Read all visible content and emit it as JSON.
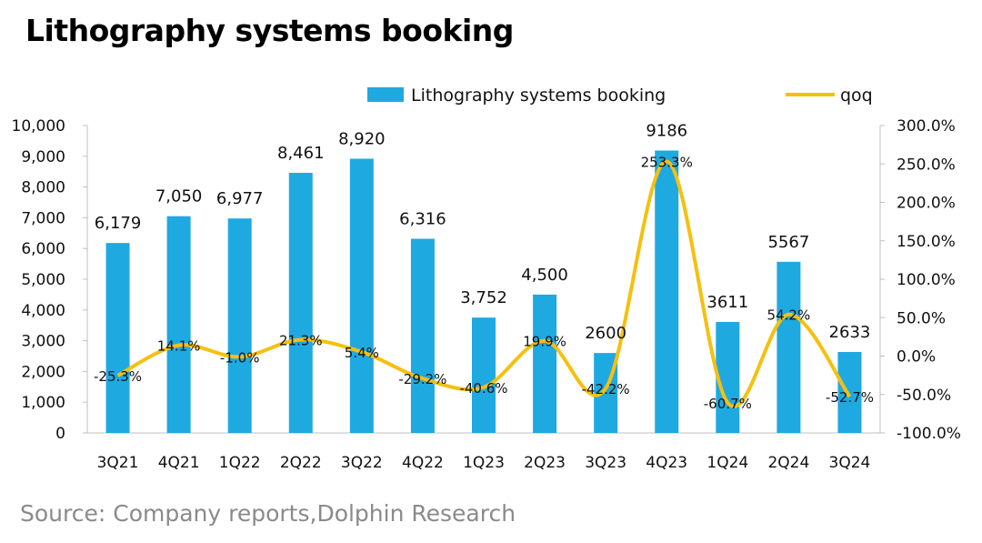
{
  "header": {
    "title": "Lithography systems booking"
  },
  "footer": {
    "source": "Source: Company reports,Dolphin Research"
  },
  "colors": {
    "bars": "#1fa9e1",
    "line": "#f5c010"
  },
  "chart_data": {
    "type": "bar",
    "title": "Lithography systems booking",
    "categories": [
      "3Q21",
      "4Q21",
      "1Q22",
      "2Q22",
      "3Q22",
      "4Q22",
      "1Q23",
      "2Q23",
      "3Q23",
      "4Q23",
      "1Q24",
      "2Q24",
      "3Q24"
    ],
    "series": [
      {
        "name": "Lithography systems booking",
        "type": "bar",
        "axis": "left",
        "values": [
          6179,
          7050,
          6977,
          8461,
          8920,
          6316,
          3752,
          4500,
          2600,
          9186,
          3611,
          5567,
          2633
        ],
        "labels": [
          "6,179",
          "7,050",
          "6,977",
          "8,461",
          "8,920",
          "6,316",
          "3,752",
          "4,500",
          "2600",
          "9186",
          "3611",
          "5567",
          "2633"
        ]
      },
      {
        "name": "qoq",
        "type": "line",
        "axis": "right",
        "values": [
          -25.3,
          14.1,
          -1.0,
          21.3,
          5.4,
          -29.2,
          -40.6,
          19.9,
          -42.2,
          253.3,
          -60.7,
          54.2,
          -52.7
        ],
        "labels": [
          "-25.3%",
          "14.1%",
          "-1.0%",
          "21.3%",
          "5.4%",
          "-29.2%",
          "-40.6%",
          "19.9%",
          "-42.2%",
          "253.3%",
          "-60.7%",
          "54.2%",
          "-52.7%"
        ]
      }
    ],
    "y_left": {
      "min": 0,
      "max": 10000,
      "ticks": [
        "0",
        "1,000",
        "2,000",
        "3,000",
        "4,000",
        "5,000",
        "6,000",
        "7,000",
        "8,000",
        "9,000",
        "10,000"
      ]
    },
    "y_right": {
      "min": -100,
      "max": 300,
      "ticks": [
        "-100.0%",
        "-50.0%",
        "0.0%",
        "50.0%",
        "100.0%",
        "150.0%",
        "200.0%",
        "250.0%",
        "300.0%"
      ]
    },
    "legend": {
      "position": "top",
      "items": [
        "Lithography systems booking",
        "qoq"
      ]
    },
    "grid": false
  }
}
